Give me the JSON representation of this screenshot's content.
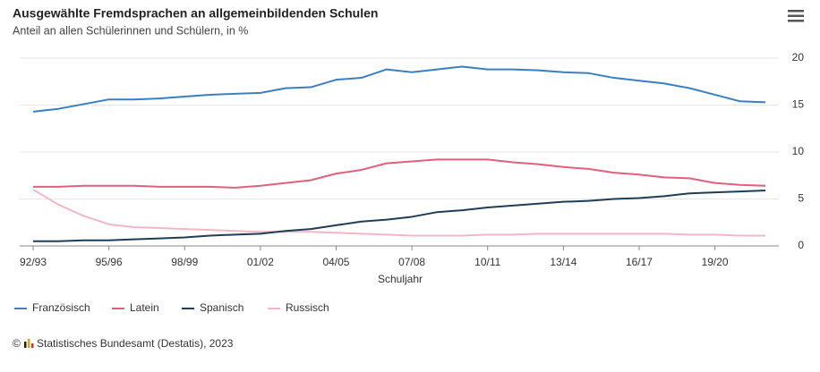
{
  "chart_data": {
    "type": "line",
    "title": "Ausgewählte Fremdsprachen an allgemeinbildenden Schulen",
    "subtitle": "Anteil an allen Schülerinnen und Schülern, in %",
    "x_label": "Schuljahr",
    "categories": [
      "92/93",
      null,
      null,
      "95/96",
      null,
      null,
      "98/99",
      null,
      null,
      "01/02",
      null,
      null,
      "04/05",
      null,
      null,
      "07/08",
      null,
      null,
      "10/11",
      null,
      null,
      "13/14",
      null,
      null,
      "16/17",
      null,
      null,
      "19/20",
      null,
      null
    ],
    "series": [
      {
        "name": "Französisch",
        "color": "#3a7fc1",
        "values": [
          14.3,
          14.6,
          15.1,
          15.6,
          15.6,
          15.7,
          15.9,
          16.1,
          16.2,
          16.3,
          16.8,
          16.9,
          17.7,
          17.9,
          18.8,
          18.5,
          18.8,
          19.1,
          18.8,
          18.8,
          18.7,
          18.5,
          18.4,
          17.9,
          17.6,
          17.3,
          16.8,
          16.1,
          15.4,
          15.3
        ]
      },
      {
        "name": "Latein",
        "color": "#e0607e",
        "values": [
          6.3,
          6.3,
          6.4,
          6.4,
          6.4,
          6.3,
          6.3,
          6.3,
          6.2,
          6.4,
          6.7,
          7.0,
          7.7,
          8.1,
          8.8,
          9.0,
          9.2,
          9.2,
          9.2,
          8.9,
          8.7,
          8.4,
          8.2,
          7.8,
          7.6,
          7.3,
          7.2,
          6.7,
          6.5,
          6.4
        ]
      },
      {
        "name": "Spanisch",
        "color": "#1f3d57",
        "values": [
          0.5,
          0.5,
          0.6,
          0.6,
          0.7,
          0.8,
          0.9,
          1.1,
          1.2,
          1.3,
          1.6,
          1.8,
          2.2,
          2.6,
          2.8,
          3.1,
          3.6,
          3.8,
          4.1,
          4.3,
          4.5,
          4.7,
          4.8,
          5.0,
          5.1,
          5.3,
          5.6,
          5.7,
          5.8,
          5.9
        ]
      },
      {
        "name": "Russisch",
        "color": "#f4b7c5",
        "values": [
          6.0,
          4.4,
          3.2,
          2.3,
          2.0,
          1.9,
          1.8,
          1.7,
          1.6,
          1.5,
          1.5,
          1.5,
          1.4,
          1.3,
          1.2,
          1.1,
          1.1,
          1.1,
          1.2,
          1.2,
          1.3,
          1.3,
          1.3,
          1.3,
          1.3,
          1.3,
          1.2,
          1.2,
          1.1,
          1.1
        ]
      }
    ],
    "ylim": [
      0,
      20
    ],
    "yticks": [
      0,
      5,
      10,
      15,
      20
    ],
    "grid": true,
    "copyright_symbol": "©",
    "source": "Statistisches Bundesamt (Destatis), 2023"
  }
}
